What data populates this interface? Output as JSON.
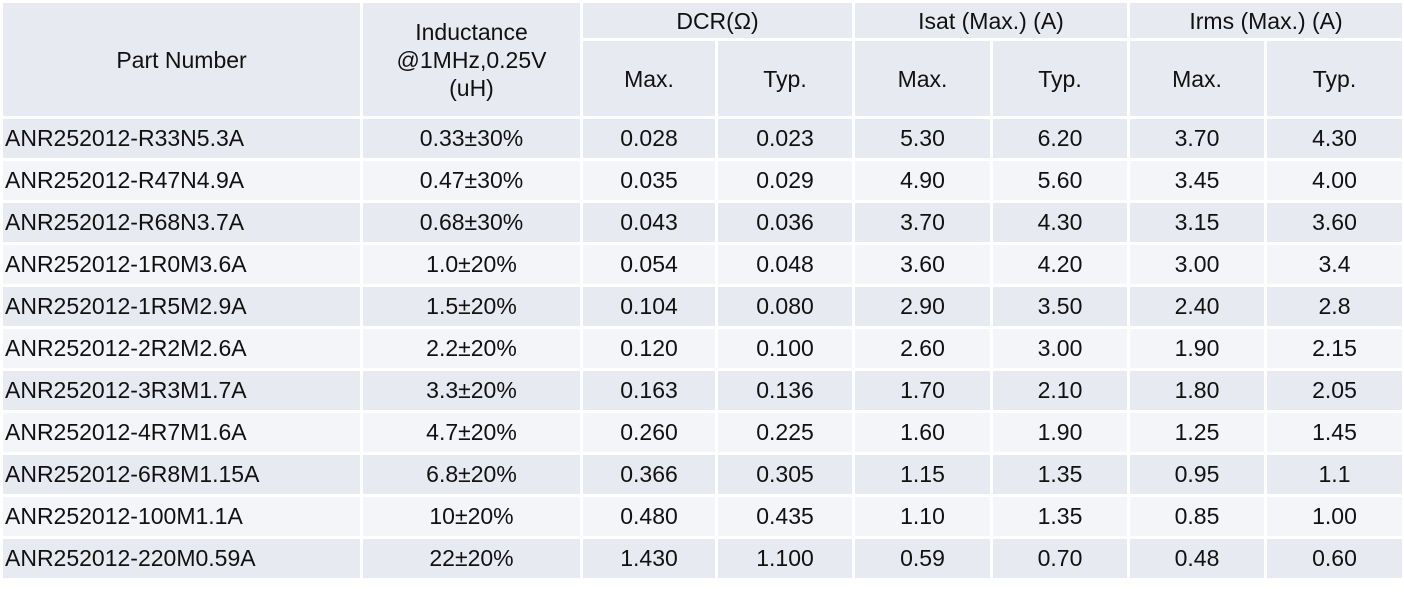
{
  "table": {
    "headers": {
      "part_number": "Part Number",
      "inductance": [
        "Inductance",
        "@1MHz,0.25V",
        "(uH)"
      ],
      "dcr": "DCR(Ω)",
      "isat": "Isat (Max.) (A)",
      "irms": "Irms (Max.) (A)",
      "max": "Max.",
      "typ": "Typ."
    },
    "rows": [
      [
        "ANR252012-R33N5.3A",
        "0.33±30%",
        "0.028",
        "0.023",
        "5.30",
        "6.20",
        "3.70",
        "4.30"
      ],
      [
        "ANR252012-R47N4.9A",
        "0.47±30%",
        "0.035",
        "0.029",
        "4.90",
        "5.60",
        "3.45",
        "4.00"
      ],
      [
        "ANR252012-R68N3.7A",
        "0.68±30%",
        "0.043",
        "0.036",
        "3.70",
        "4.30",
        "3.15",
        "3.60"
      ],
      [
        "ANR252012-1R0M3.6A",
        "1.0±20%",
        "0.054",
        "0.048",
        "3.60",
        "4.20",
        "3.00",
        "3.4"
      ],
      [
        "ANR252012-1R5M2.9A",
        "1.5±20%",
        "0.104",
        "0.080",
        "2.90",
        "3.50",
        "2.40",
        "2.8"
      ],
      [
        "ANR252012-2R2M2.6A",
        "2.2±20%",
        "0.120",
        "0.100",
        "2.60",
        "3.00",
        "1.90",
        "2.15"
      ],
      [
        "ANR252012-3R3M1.7A",
        "3.3±20%",
        "0.163",
        "0.136",
        "1.70",
        "2.10",
        "1.80",
        "2.05"
      ],
      [
        "ANR252012-4R7M1.6A",
        "4.7±20%",
        "0.260",
        "0.225",
        "1.60",
        "1.90",
        "1.25",
        "1.45"
      ],
      [
        "ANR252012-6R8M1.15A",
        "6.8±20%",
        "0.366",
        "0.305",
        "1.15",
        "1.35",
        "0.95",
        "1.1"
      ],
      [
        "ANR252012-100M1.1A",
        "10±20%",
        "0.480",
        "0.435",
        "1.10",
        "1.35",
        "0.85",
        "1.00"
      ],
      [
        "ANR252012-220M0.59A",
        "22±20%",
        "1.430",
        "1.100",
        "0.59",
        "0.70",
        "0.48",
        "0.60"
      ]
    ]
  }
}
